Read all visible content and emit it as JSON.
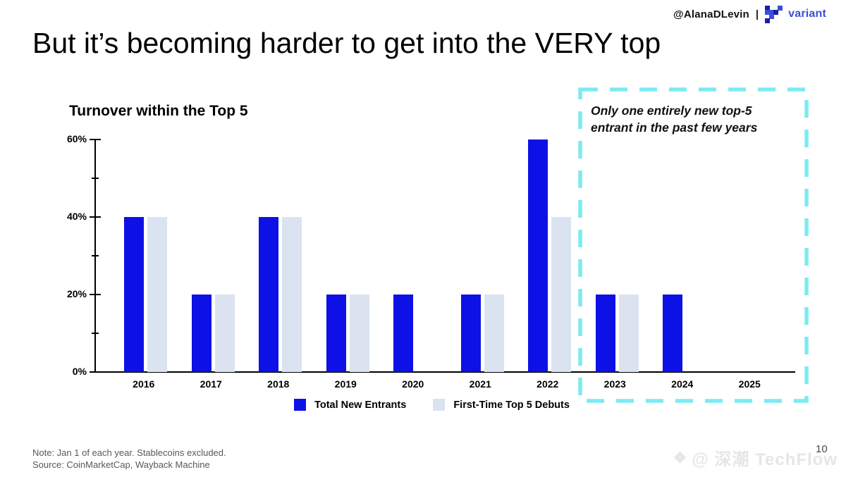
{
  "header": {
    "author": "@AlanaDLevin",
    "separator": "|",
    "brand": "variant"
  },
  "title": "But it’s becoming harder to get into the VERY top",
  "chart": {
    "title": "Turnover within the Top 5"
  },
  "chart_data": {
    "type": "bar",
    "title": "Turnover within the Top 5",
    "categories": [
      "2016",
      "2017",
      "2018",
      "2019",
      "2020",
      "2021",
      "2022",
      "2023",
      "2024",
      "2025"
    ],
    "series": [
      {
        "name": "Total New Entrants",
        "color": "#0e11e6",
        "values": [
          40,
          20,
          40,
          20,
          20,
          20,
          60,
          20,
          20,
          0
        ]
      },
      {
        "name": "First-Time Top 5 Debuts",
        "color": "#dbe3f1",
        "values": [
          40,
          20,
          40,
          20,
          0,
          20,
          40,
          20,
          0,
          0
        ]
      }
    ],
    "unit": "%",
    "xlabel": "",
    "ylabel": "",
    "ylim": [
      0,
      60
    ],
    "yticks": [
      0,
      20,
      40,
      60
    ],
    "ytick_labels": [
      "0%",
      "20%",
      "40%",
      "60%"
    ],
    "yticks_minor": [
      10,
      30,
      50
    ],
    "grid": false,
    "legend_position": "bottom",
    "annotation": "Only one entirely new top-5\nentrant in the past few years",
    "annotation_box_color": "#7deaf1",
    "annotation_covers": [
      "2023",
      "2024",
      "2025"
    ]
  },
  "footer": {
    "note": "Note: Jan 1 of each year. Stablecoins excluded.",
    "source": "Source: CoinMarketCap, Wayback Machine"
  },
  "watermark": {
    "icon": "❖",
    "text": "@ 深潮 TechFlow"
  },
  "page_number": "10"
}
